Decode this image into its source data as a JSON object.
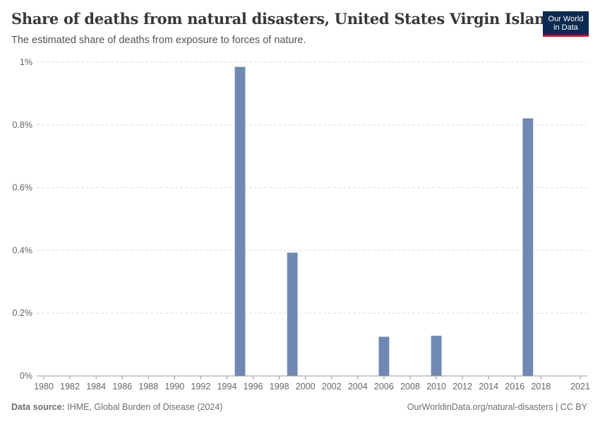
{
  "header": {
    "title": "Share of deaths from natural disasters, United States Virgin Islands",
    "subtitle": "The estimated share of deaths from exposure to forces of nature."
  },
  "logo": {
    "line1": "Our World",
    "line2": "in Data"
  },
  "footer": {
    "source_label": "Data source:",
    "source_text": "IHME, Global Burden of Disease (2024)",
    "right_text": "OurWorldinData.org/natural-disasters | CC BY"
  },
  "colors": {
    "bar": "#6f89b2",
    "grid": "#dddddd",
    "axis": "#999999"
  },
  "chart_data": {
    "type": "bar",
    "ylim": [
      0,
      1
    ],
    "y_ticks": [
      0,
      0.2,
      0.4,
      0.6,
      0.8,
      1
    ],
    "y_tick_labels": [
      "0%",
      "0.2%",
      "0.4%",
      "0.6%",
      "0.8%",
      "1%"
    ],
    "x_range": [
      1980,
      2021
    ],
    "x_ticks": [
      1980,
      1982,
      1984,
      1986,
      1988,
      1990,
      1992,
      1994,
      1996,
      1998,
      2000,
      2002,
      2004,
      2006,
      2008,
      2010,
      2012,
      2014,
      2016,
      2018,
      2021
    ],
    "x_tick_labels": [
      "1980",
      "1982",
      "1984",
      "1986",
      "1988",
      "1990",
      "1992",
      "1994",
      "1996",
      "1998",
      "2000",
      "2002",
      "2004",
      "2006",
      "2008",
      "2010",
      "2012",
      "2014",
      "2016",
      "2018",
      "2021"
    ],
    "unit": "%",
    "grid": true,
    "series": [
      {
        "x": [
          1995,
          1999,
          2006,
          2010,
          2017
        ],
        "values": [
          0.985,
          0.393,
          0.125,
          0.128,
          0.821
        ]
      }
    ]
  }
}
